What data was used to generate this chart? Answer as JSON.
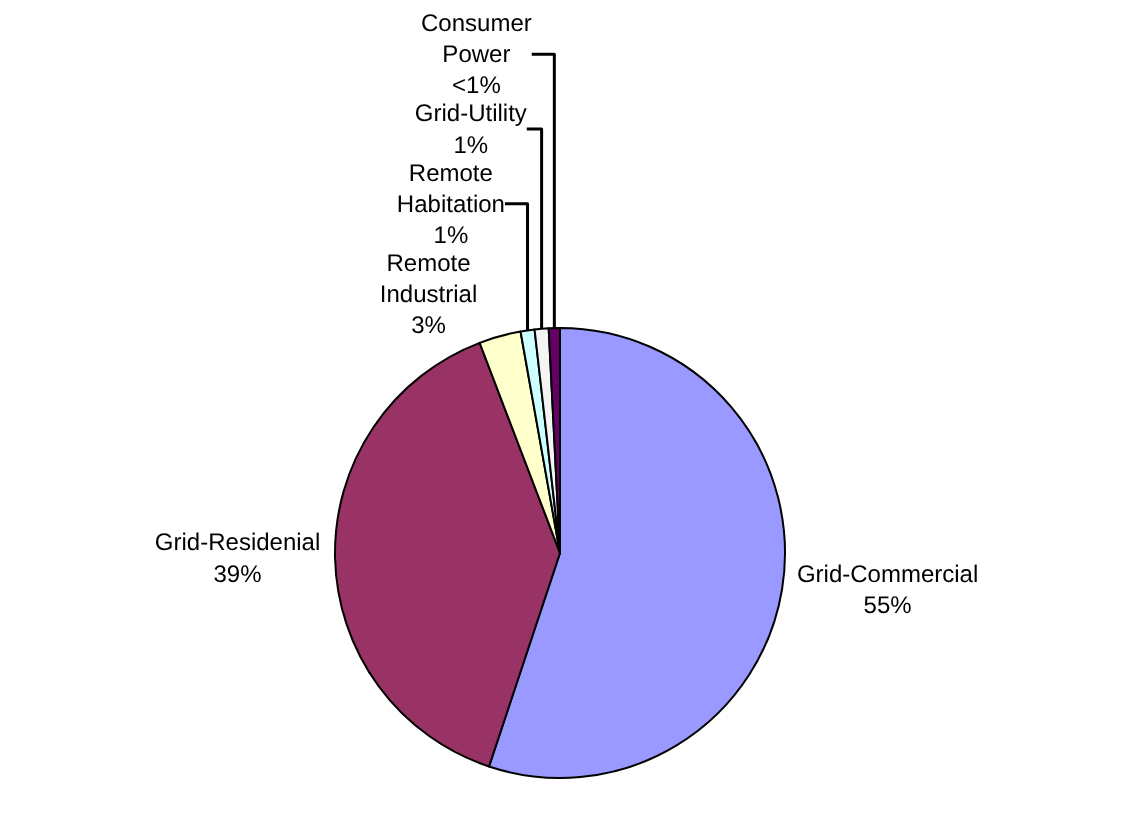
{
  "chart_data": {
    "type": "pie",
    "categories": [
      "Grid-Commercial",
      "Grid-Residenial",
      "Remote Industrial",
      "Remote Habitation",
      "Grid-Utility",
      "Consumer Power"
    ],
    "values": [
      55,
      39,
      3,
      1,
      1,
      0.8
    ],
    "value_labels": [
      "55%",
      "39%",
      "3%",
      "1%",
      "1%",
      "<1%"
    ],
    "colors": [
      "#9999ff",
      "#993366",
      "#ffffcc",
      "#ccffff",
      "#f4f4f4",
      "#660066"
    ],
    "legend": false
  }
}
